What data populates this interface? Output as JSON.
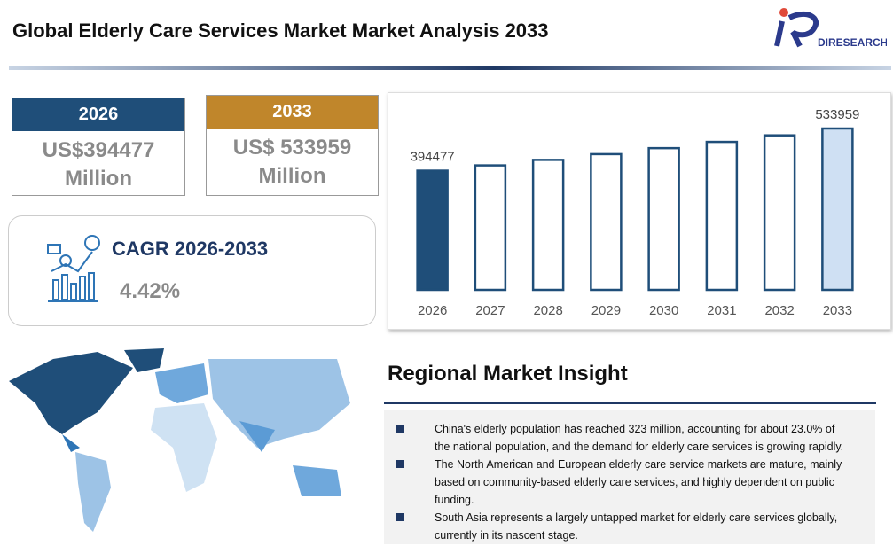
{
  "header": {
    "title": "Global Elderly Care Services Market Market Analysis 2033",
    "logo_text": "DIRESEARCH"
  },
  "cards": [
    {
      "year": "2026",
      "value": "US$394477 Million"
    },
    {
      "year": "2033",
      "value": "US$ 533959 Million"
    }
  ],
  "cagr": {
    "label": "CAGR 2026-2033",
    "value": "4.42%"
  },
  "chart_data": {
    "type": "bar",
    "categories": [
      "2026",
      "2027",
      "2028",
      "2029",
      "2030",
      "2031",
      "2032",
      "2033"
    ],
    "values": [
      394477,
      411913,
      430119,
      449130,
      468982,
      489711,
      511357,
      533959
    ],
    "value_labels": [
      "394477",
      null,
      null,
      null,
      null,
      null,
      null,
      "533959"
    ],
    "colors": [
      "#1f4e79",
      "#ffffff",
      "#ffffff",
      "#ffffff",
      "#ffffff",
      "#ffffff",
      "#ffffff",
      "#cfe0f3"
    ],
    "edge_color": "#1f4e79",
    "ylim": [
      0,
      533959
    ]
  },
  "insight": {
    "title": "Regional Market Insight",
    "items": [
      "China's elderly population has reached 323 million, accounting for about 23.0% of the national population, and the demand for elderly care services is growing rapidly.",
      "The North American and European elderly care service markets are mature, mainly based on community-based elderly care services, and highly dependent on public funding.",
      "South Asia represents a largely untapped market for elderly care services globally, currently in its nascent stage."
    ]
  }
}
